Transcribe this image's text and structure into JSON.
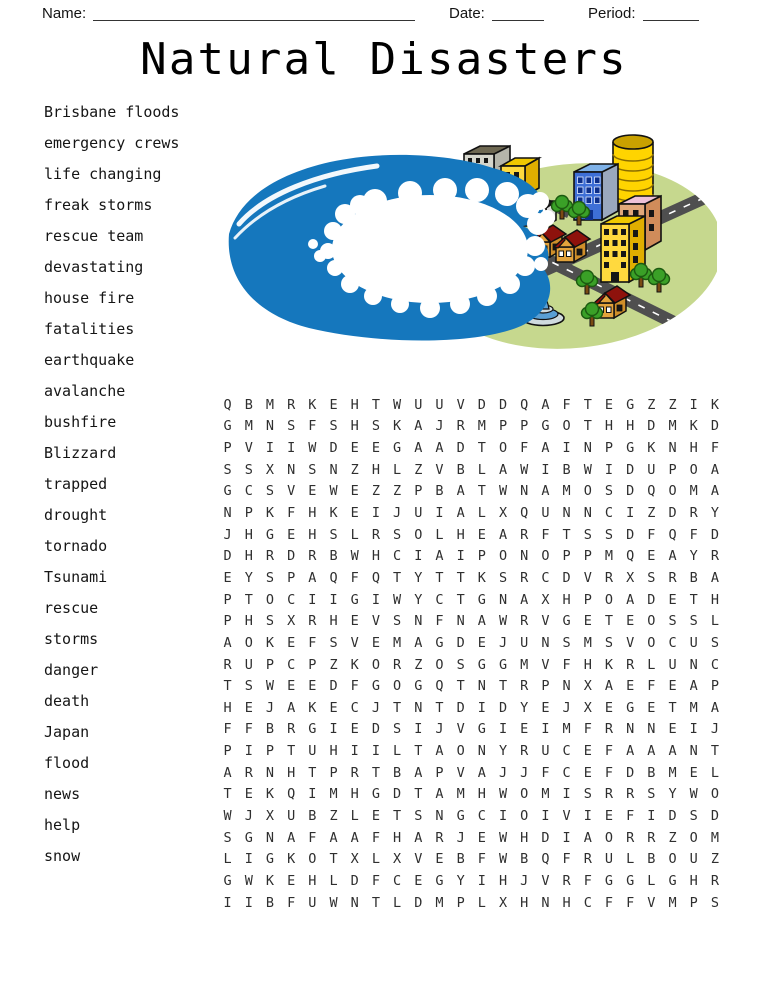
{
  "header": {
    "name_label": "Name:",
    "date_label": "Date:",
    "period_label": "Period:"
  },
  "title": "Natural Disasters",
  "words": [
    "Brisbane floods",
    "emergency crews",
    "life changing",
    "freak storms",
    "rescue team",
    "devastating",
    "house fire",
    "fatalities",
    "earthquake",
    "avalanche",
    "bushfire",
    "Blizzard",
    "trapped",
    "drought",
    "tornado",
    "Tsunami",
    "rescue",
    "storms",
    "danger",
    "death",
    "Japan",
    "flood",
    "news",
    "help",
    "snow"
  ],
  "grid": {
    "cols": 24,
    "rows": [
      "QBMRKEHTWUUVDDQAFTEGZZIK",
      "GMNSFSHSKAJRMPPGOTHHDMKD",
      "PVIIWDEEGAADTOFAINPGKNHF",
      "SSXNSNZHLZVBLAWIBWIDUPOA",
      "GCSVEWEZZPBATWNAMOSDQOMA",
      "NPKFHKEIJUIALXQUNNCIZDRY",
      "JHGEHSLRSOLHEARFTSSDFQFD",
      "DHRDRBWHCIAIPONOPPMQEAYR",
      "EYSPAQFQTYTTKSRCDVRXSRBA",
      "PTOCIIGIWYCTGNAXHPOADETH",
      "PHSXRHEVSNFNAWRVGETEOSSL",
      "AOKEFSVEMAGDEJUNSMSVOCUS",
      "RUPCPZKORZOSGGMVFHKRLUNC",
      "TSWEEDFGOGQTNTRPNXAEFEAP",
      "HEJAKECJTNTDIDYEJXEGETMA",
      "FFBRGIEDSIJVGIEIMFRNNEIJ",
      "PIPTUHIILTAONYRUCEFAAANT",
      "ARNHTPRTBAPVAJJFCEFDBMEL",
      "TEKQIMHGDTAMHWOMISRRSYWO",
      "WJXUBZLETSNGCIOIVIEFIDSD",
      "SGNAFAAFHARJEWHDIAORRZOM",
      "LIGKOTXLXVEBFWBQFRULBOUZ",
      "GWKEHLDFCEGYIHJVRFGGLGHR",
      "IIBFUWNTLDMPLXHNHCFFVMPS"
    ]
  },
  "illustration": {
    "name": "tsunami-wave-hitting-city-clipart"
  },
  "colors": {
    "wave-blue": "#1577bd",
    "foam-white": "#ffffff",
    "land-green": "#c6d88e",
    "road-gray": "#4f4f4f",
    "roof-red": "#8e120c",
    "wall-tan": "#e3a33c",
    "wall-tan-dark": "#cf8f2a",
    "tree-green": "#3aa027",
    "tree-dark": "#1c5a10",
    "trunk-brown": "#7a4a12",
    "building-gray": "#d6d6cc",
    "building-gray-side": "#b5b5aa",
    "building-gray-top": "#6e6852",
    "building-yellow": "#ffd93e",
    "building-yellow-side": "#e0ae00",
    "building-yellow-top": "#f0c800",
    "building-blue": "#3e6fd6",
    "building-blue-side": "#9aa8be",
    "building-blue-top": "#7fb2e8",
    "tower-gold": "#ffd400",
    "tower-gold-top": "#c9a100",
    "building-pink-wall": "#e2a87a",
    "building-pink-side": "#d08c5a",
    "building-pink-top": "#eec2d8",
    "fountain-blue": "#5a9fd4",
    "fountain-base": "#cfdade"
  }
}
